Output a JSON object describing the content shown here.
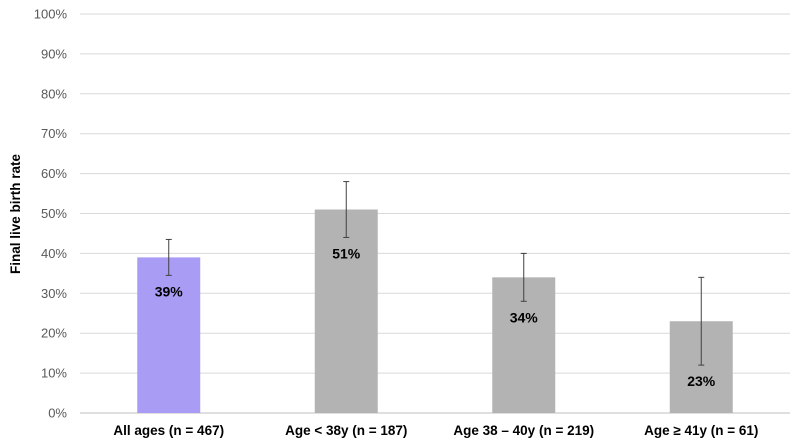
{
  "chart_data": {
    "type": "bar",
    "title": "",
    "xlabel": "",
    "ylabel": "Final live birth rate",
    "ylim": [
      0,
      100
    ],
    "yticks": [
      "0%",
      "10%",
      "20%",
      "30%",
      "40%",
      "50%",
      "60%",
      "70%",
      "80%",
      "90%",
      "100%"
    ],
    "grid": true,
    "categories": [
      "All ages (n = 467)",
      "Age < 38y (n = 187)",
      "Age 38 – 40y (n = 219)",
      "Age ≥ 41y (n = 61)"
    ],
    "values": [
      39,
      51,
      34,
      23
    ],
    "data_labels": [
      "39%",
      "51%",
      "34%",
      "23%"
    ],
    "error_low": [
      34.5,
      44,
      28,
      12
    ],
    "error_high": [
      43.5,
      58,
      40,
      34
    ],
    "colors": [
      "#a99cf4",
      "#b3b3b3",
      "#b3b3b3",
      "#b3b3b3"
    ]
  }
}
